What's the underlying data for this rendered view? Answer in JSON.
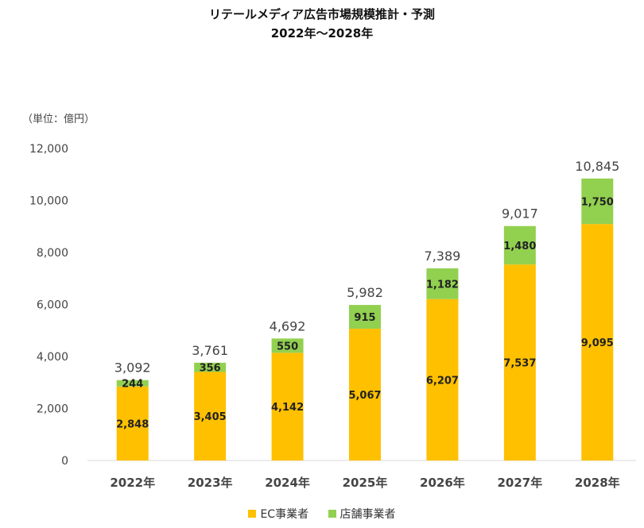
{
  "chart_data": {
    "type": "bar",
    "stacked": true,
    "title": "リテールメディア広告市場規模推計・予測",
    "subtitle": "2022年～2028年",
    "unit_label": "（単位：億円）",
    "categories": [
      "2022年",
      "2023年",
      "2024年",
      "2025年",
      "2026年",
      "2027年",
      "2028年"
    ],
    "series": [
      {
        "name": "EC事業者",
        "color": "#FFC000",
        "values": [
          2848,
          3405,
          4142,
          5067,
          6207,
          7537,
          9095
        ]
      },
      {
        "name": "店舗事業者",
        "color": "#92D050",
        "values": [
          244,
          356,
          550,
          915,
          1182,
          1480,
          1750
        ]
      }
    ],
    "totals": [
      3092,
      3761,
      4692,
      5982,
      7389,
      9017,
      10845
    ],
    "ylim": [
      0,
      12000
    ],
    "yticks": [
      0,
      2000,
      4000,
      6000,
      8000,
      10000,
      12000
    ],
    "grid": false,
    "legend_position": "bottom"
  }
}
